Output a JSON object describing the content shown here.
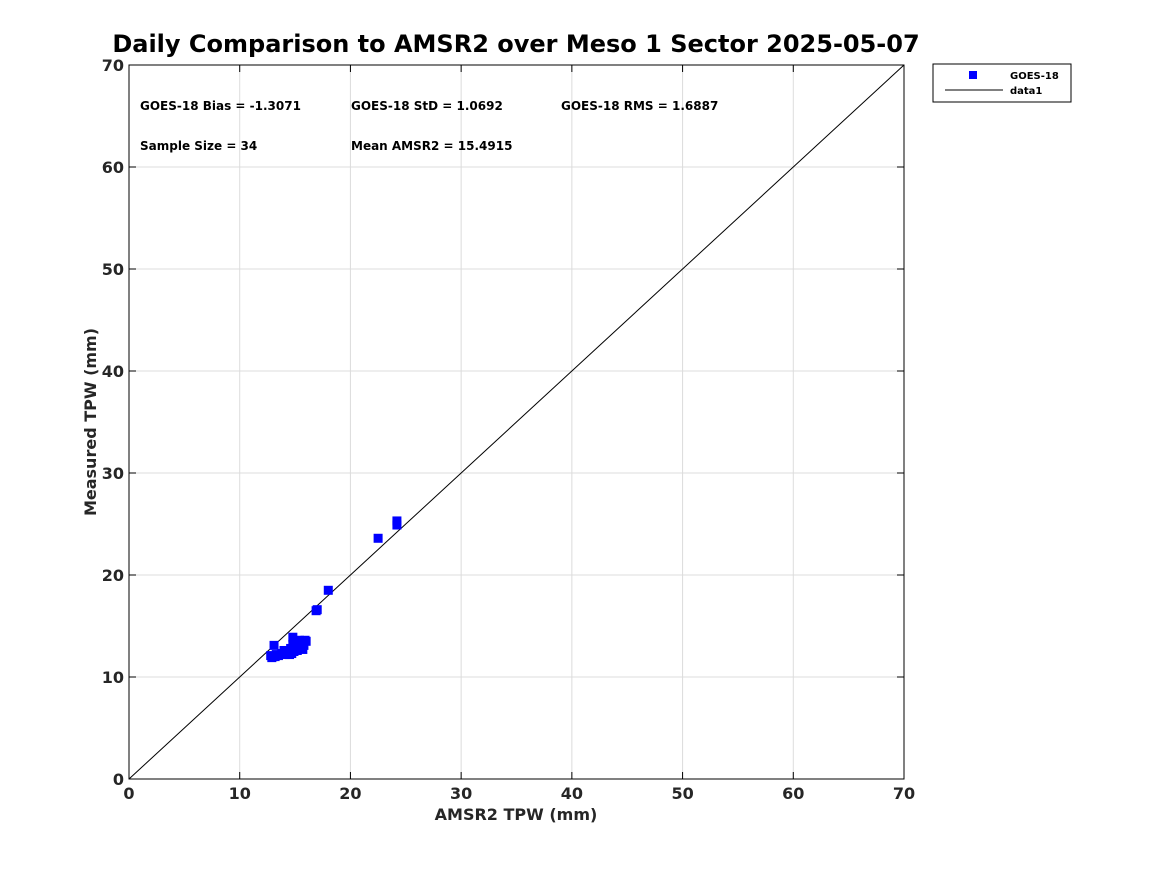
{
  "chart_data": {
    "type": "scatter",
    "title": "Daily Comparison to AMSR2 over Meso 1 Sector 2025-05-07",
    "xlabel": "AMSR2 TPW (mm)",
    "ylabel": "Measured TPW (mm)",
    "xlim": [
      0,
      70
    ],
    "ylim": [
      0,
      70
    ],
    "xticks": [
      0,
      10,
      20,
      30,
      40,
      50,
      60,
      70
    ],
    "yticks": [
      0,
      10,
      20,
      30,
      40,
      50,
      60,
      70
    ],
    "grid": true,
    "legend_position": "outside-top-right",
    "annotations": [
      "GOES-18 Bias = -1.3071",
      "GOES-18 StD = 1.0692",
      "GOES-18 RMS = 1.6887",
      "Sample Size = 34",
      "Mean AMSR2 = 15.4915"
    ],
    "series": [
      {
        "name": "GOES-18",
        "kind": "scatter",
        "marker": "square",
        "color": "#0000ff",
        "points": [
          [
            12.8,
            12.1
          ],
          [
            12.9,
            11.9
          ],
          [
            13.0,
            12.0
          ],
          [
            13.1,
            13.1
          ],
          [
            13.2,
            12.0
          ],
          [
            13.3,
            12.2
          ],
          [
            13.5,
            12.1
          ],
          [
            13.8,
            12.3
          ],
          [
            14.0,
            12.6
          ],
          [
            14.1,
            12.2
          ],
          [
            14.3,
            12.5
          ],
          [
            14.5,
            12.2
          ],
          [
            14.6,
            12.8
          ],
          [
            14.7,
            12.3
          ],
          [
            14.8,
            13.9
          ],
          [
            14.8,
            13.2
          ],
          [
            14.9,
            12.5
          ],
          [
            15.0,
            12.9
          ],
          [
            15.1,
            13.1
          ],
          [
            15.2,
            12.6
          ],
          [
            15.3,
            13.4
          ],
          [
            15.4,
            13.6
          ],
          [
            15.5,
            12.9
          ],
          [
            15.6,
            13.3
          ],
          [
            15.7,
            12.7
          ],
          [
            15.8,
            13.1
          ],
          [
            15.9,
            13.6
          ],
          [
            16.0,
            13.5
          ],
          [
            16.9,
            16.5
          ],
          [
            17.0,
            16.6
          ],
          [
            18.0,
            18.5
          ],
          [
            22.5,
            23.6
          ],
          [
            24.2,
            24.9
          ],
          [
            24.2,
            25.3
          ]
        ]
      },
      {
        "name": "data1",
        "kind": "line",
        "color": "#000000",
        "x": [
          0,
          70
        ],
        "y": [
          0,
          70
        ]
      }
    ]
  }
}
